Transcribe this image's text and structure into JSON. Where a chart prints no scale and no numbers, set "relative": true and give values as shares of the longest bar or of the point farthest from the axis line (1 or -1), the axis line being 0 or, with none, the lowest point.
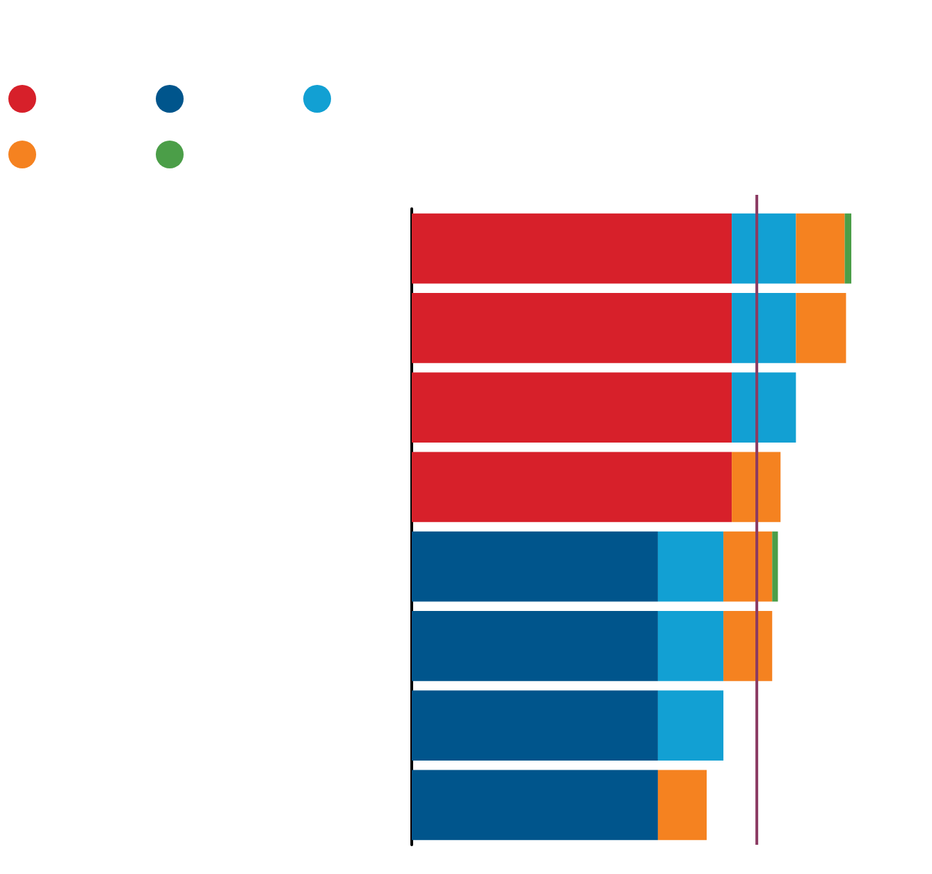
{
  "chart_data": {
    "type": "bar",
    "orientation": "horizontal",
    "stacked": true,
    "relative": true,
    "categories": [
      null,
      null,
      null,
      null,
      null,
      null,
      null,
      null
    ],
    "series": [
      {
        "color": "#d7202a",
        "values": [
          0.728,
          0.728,
          0.728,
          0.728,
          null,
          null,
          null,
          null
        ]
      },
      {
        "color": "#00558c",
        "values": [
          null,
          null,
          null,
          null,
          0.56,
          0.56,
          0.56,
          0.56
        ]
      },
      {
        "color": "#12a0d3",
        "values": [
          0.146,
          0.146,
          0.146,
          null,
          0.149,
          0.149,
          0.149,
          null
        ]
      },
      {
        "color": "#f58220",
        "values": [
          0.111,
          0.114,
          null,
          0.111,
          0.111,
          0.111,
          null,
          0.111
        ]
      },
      {
        "color": "#4b9e48",
        "values": [
          0.015,
          null,
          null,
          null,
          0.013,
          null,
          null,
          null
        ]
      }
    ],
    "ref_lines": [
      {
        "axis": "x",
        "value": 0.785,
        "color": "#8b3a62"
      }
    ]
  }
}
